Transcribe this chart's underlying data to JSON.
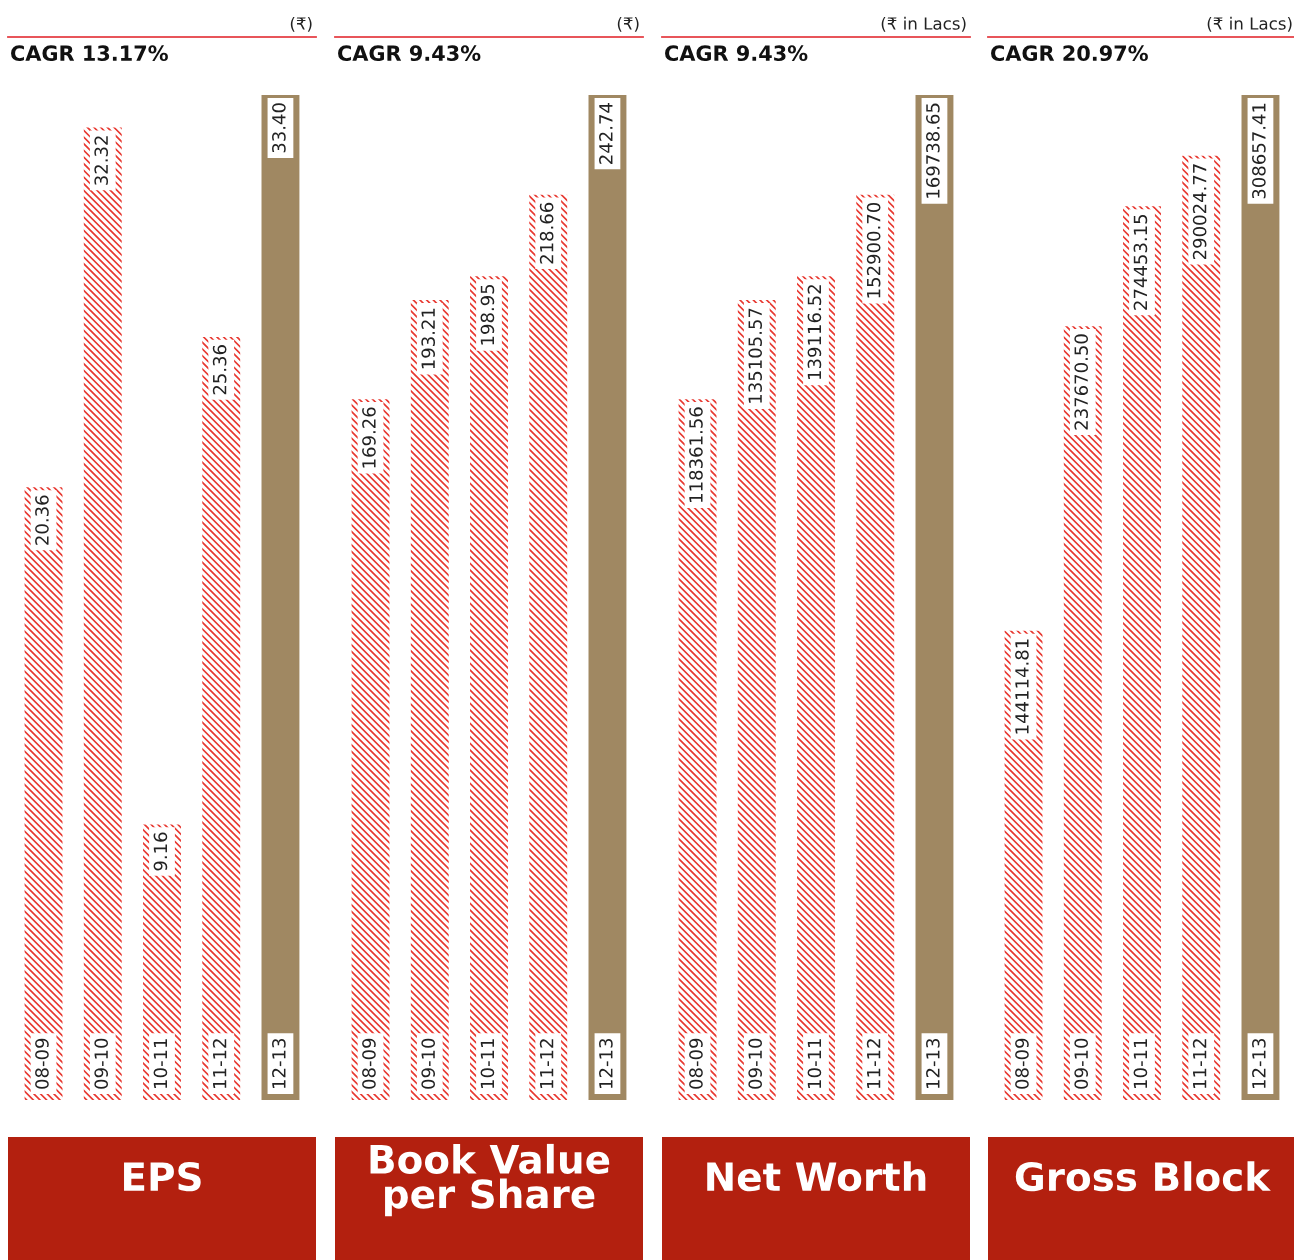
{
  "chart_data": [
    {
      "type": "bar",
      "title": "EPS",
      "subtitle": "CAGR 13.17%",
      "annotations": [
        "(₹)"
      ],
      "categories": [
        "08-09",
        "09-10",
        "10-11",
        "11-12",
        "12-13"
      ],
      "values": [
        20.36,
        32.32,
        9.16,
        25.36,
        33.4
      ],
      "value_labels": [
        "20.36",
        "32.32",
        "9.16",
        "25.36",
        "33.40"
      ],
      "colors": [
        "#e8372f",
        "#e8372f",
        "#e8372f",
        "#e8372f",
        "#a08862"
      ]
    },
    {
      "type": "bar",
      "title": "Book Value\nper Share",
      "subtitle": "CAGR 9.43%",
      "annotations": [
        "(₹)"
      ],
      "categories": [
        "08-09",
        "09-10",
        "10-11",
        "11-12",
        "12-13"
      ],
      "values": [
        169.26,
        193.21,
        198.95,
        218.66,
        242.74
      ],
      "value_labels": [
        "169.26",
        "193.21",
        "198.95",
        "218.66",
        "242.74"
      ],
      "colors": [
        "#e8372f",
        "#e8372f",
        "#e8372f",
        "#e8372f",
        "#a08862"
      ]
    },
    {
      "type": "bar",
      "title": "Net Worth",
      "subtitle": "CAGR 9.43%",
      "annotations": [
        "(₹ in Lacs)"
      ],
      "categories": [
        "08-09",
        "09-10",
        "10-11",
        "11-12",
        "12-13"
      ],
      "values": [
        118361.56,
        135105.57,
        139116.52,
        152900.7,
        169738.65
      ],
      "value_labels": [
        "118361.56",
        "135105.57",
        "139116.52",
        "152900.70",
        "169738.65"
      ],
      "colors": [
        "#e8372f",
        "#e8372f",
        "#e8372f",
        "#e8372f",
        "#a08862"
      ]
    },
    {
      "type": "bar",
      "title": "Gross Block",
      "subtitle": "CAGR 20.97%",
      "annotations": [
        "(₹ in Lacs)"
      ],
      "categories": [
        "08-09",
        "09-10",
        "10-11",
        "11-12",
        "12-13"
      ],
      "values": [
        144114.81,
        237670.5,
        274453.15,
        290024.77,
        308657.41
      ],
      "value_labels": [
        "144114.81",
        "237670.50",
        "274453.15",
        "290024.77",
        "308657.41"
      ],
      "colors": [
        "#e8372f",
        "#e8372f",
        "#e8372f",
        "#e8372f",
        "#a08862"
      ]
    }
  ]
}
